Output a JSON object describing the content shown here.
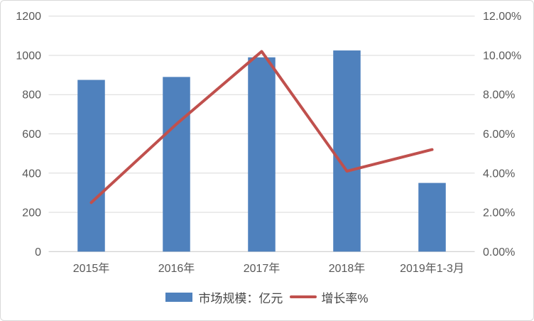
{
  "chart_data": {
    "type": "bar",
    "subtype": "combo-bar-line-dual-axis",
    "title": "",
    "categories": [
      "2015年",
      "2016年",
      "2017年",
      "2018年",
      "2019年1-3月"
    ],
    "series": [
      {
        "name": "市场规模：亿元",
        "type": "bar",
        "axis": "left",
        "color": "#4F81BD",
        "values": [
          875,
          890,
          990,
          1025,
          350
        ]
      },
      {
        "name": "增长率%",
        "type": "line",
        "axis": "right",
        "color": "#C0504D",
        "values": [
          2.5,
          6.5,
          10.2,
          4.1,
          5.2
        ]
      }
    ],
    "left_axis": {
      "min": 0,
      "max": 1200,
      "step": 200,
      "tick_labels": [
        "0",
        "200",
        "400",
        "600",
        "800",
        "1000",
        "1200"
      ]
    },
    "right_axis": {
      "min": 0,
      "max": 12,
      "step": 2,
      "tick_labels": [
        "0.00%",
        "2.00%",
        "4.00%",
        "6.00%",
        "8.00%",
        "10.00%",
        "12.00%"
      ]
    },
    "grid": true,
    "legend_position": "bottom",
    "colors": {
      "background": "#FFFFFF",
      "border": "#D9D9D9",
      "gridline": "#D9D9D9",
      "axis_line": "#C6C6C6",
      "tick_text": "#595959",
      "legend_text": "#474747"
    }
  }
}
